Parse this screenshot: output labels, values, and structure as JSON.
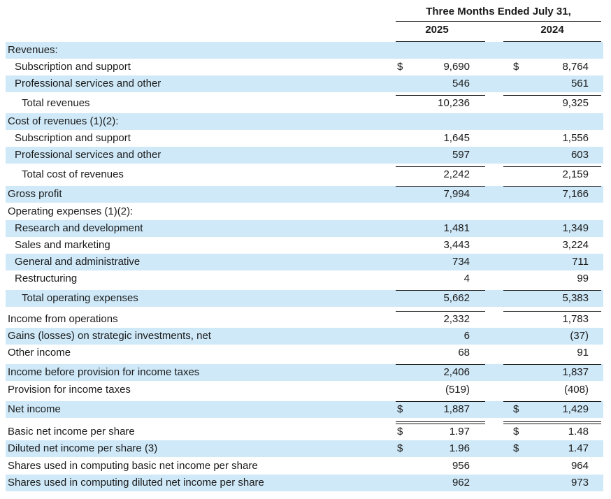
{
  "header": {
    "period": "Three Months Ended July 31,",
    "years": [
      "2025",
      "2024"
    ]
  },
  "currency_symbol": "$",
  "rows": [
    {
      "label": "Revenues:",
      "indent": 0,
      "shade": true,
      "v2025": "",
      "v2024": "",
      "currency": false
    },
    {
      "label": "Subscription and support",
      "indent": 1,
      "shade": false,
      "v2025": "9,690",
      "v2024": "8,764",
      "currency": true
    },
    {
      "label": "Professional services and other",
      "indent": 1,
      "shade": true,
      "v2025": "546",
      "v2024": "561",
      "currency": false
    },
    {
      "label": "Total revenues",
      "indent": 2,
      "shade": false,
      "v2025": "10,236",
      "v2024": "9,325",
      "currency": false
    },
    {
      "label": "Cost of revenues (1)(2):",
      "indent": 0,
      "shade": true,
      "v2025": "",
      "v2024": "",
      "currency": false
    },
    {
      "label": "Subscription and support",
      "indent": 1,
      "shade": false,
      "v2025": "1,645",
      "v2024": "1,556",
      "currency": false
    },
    {
      "label": "Professional services and other",
      "indent": 1,
      "shade": true,
      "v2025": "597",
      "v2024": "603",
      "currency": false
    },
    {
      "label": "Total cost of revenues",
      "indent": 2,
      "shade": false,
      "v2025": "2,242",
      "v2024": "2,159",
      "currency": false
    },
    {
      "label": "Gross profit",
      "indent": 0,
      "shade": true,
      "v2025": "7,994",
      "v2024": "7,166",
      "currency": false
    },
    {
      "label": "Operating expenses (1)(2):",
      "indent": 0,
      "shade": false,
      "v2025": "",
      "v2024": "",
      "currency": false
    },
    {
      "label": "Research and development",
      "indent": 1,
      "shade": true,
      "v2025": "1,481",
      "v2024": "1,349",
      "currency": false
    },
    {
      "label": "Sales and marketing",
      "indent": 1,
      "shade": false,
      "v2025": "3,443",
      "v2024": "3,224",
      "currency": false
    },
    {
      "label": "General and administrative",
      "indent": 1,
      "shade": true,
      "v2025": "734",
      "v2024": "711",
      "currency": false
    },
    {
      "label": "Restructuring",
      "indent": 1,
      "shade": false,
      "v2025": "4",
      "v2024": "99",
      "currency": false
    },
    {
      "label": "Total operating expenses",
      "indent": 2,
      "shade": true,
      "v2025": "5,662",
      "v2024": "5,383",
      "currency": false
    },
    {
      "label": "Income from operations",
      "indent": 0,
      "shade": false,
      "v2025": "2,332",
      "v2024": "1,783",
      "currency": false
    },
    {
      "label": "Gains (losses) on strategic investments, net",
      "indent": 0,
      "shade": true,
      "v2025": "6",
      "v2024": "(37)",
      "currency": false
    },
    {
      "label": "Other income",
      "indent": 0,
      "shade": false,
      "v2025": "68",
      "v2024": "91",
      "currency": false
    },
    {
      "label": "Income before provision for income taxes",
      "indent": 0,
      "shade": true,
      "v2025": "2,406",
      "v2024": "1,837",
      "currency": false
    },
    {
      "label": "Provision for income taxes",
      "indent": 0,
      "shade": false,
      "v2025": "(519)",
      "v2024": "(408)",
      "currency": false
    },
    {
      "label": "Net income",
      "indent": 0,
      "shade": true,
      "v2025": "1,887",
      "v2024": "1,429",
      "currency": true
    },
    {
      "label": "Basic net income per share",
      "indent": 0,
      "shade": false,
      "v2025": "1.97",
      "v2024": "1.48",
      "currency": true
    },
    {
      "label": "Diluted net income per share (3)",
      "indent": 0,
      "shade": true,
      "v2025": "1.96",
      "v2024": "1.47",
      "currency": true
    },
    {
      "label": "Shares used in computing basic net income per share",
      "indent": 0,
      "shade": false,
      "v2025": "956",
      "v2024": "964",
      "currency": false
    },
    {
      "label": "Shares used in computing diluted net income per share",
      "indent": 0,
      "shade": true,
      "v2025": "962",
      "v2024": "973",
      "currency": false
    }
  ]
}
